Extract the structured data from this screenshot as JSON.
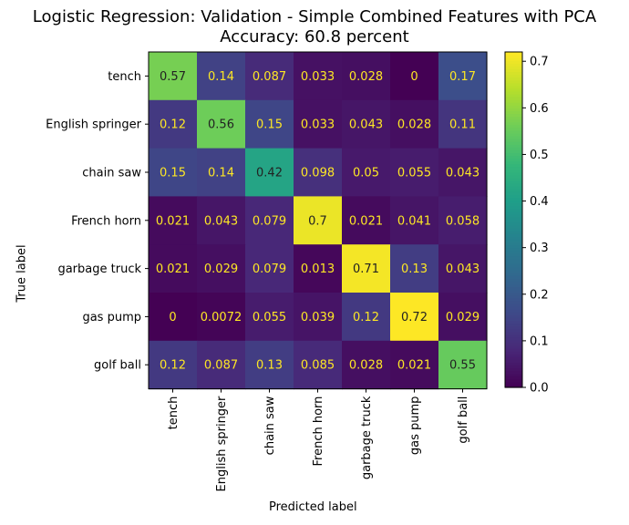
{
  "chart_data": {
    "type": "heatmap",
    "title": "Logistic Regression: Validation - Simple Combined Features with PCA",
    "subtitle": "Accuracy: 60.8 percent",
    "xlabel": "Predicted label",
    "ylabel": "True label",
    "categories": [
      "tench",
      "English springer",
      "chain saw",
      "French horn",
      "garbage truck",
      "gas pump",
      "golf ball"
    ],
    "matrix": [
      [
        0.57,
        0.14,
        0.087,
        0.033,
        0.028,
        0,
        0.17
      ],
      [
        0.12,
        0.56,
        0.15,
        0.033,
        0.043,
        0.028,
        0.11
      ],
      [
        0.15,
        0.14,
        0.42,
        0.098,
        0.05,
        0.055,
        0.043
      ],
      [
        0.021,
        0.043,
        0.079,
        0.7,
        0.021,
        0.041,
        0.058
      ],
      [
        0.021,
        0.029,
        0.079,
        0.013,
        0.71,
        0.13,
        0.043
      ],
      [
        0,
        0.0072,
        0.055,
        0.039,
        0.12,
        0.72,
        0.029
      ],
      [
        0.12,
        0.087,
        0.13,
        0.085,
        0.028,
        0.021,
        0.55
      ]
    ],
    "colormap": "viridis",
    "colorbar": {
      "min": 0.0,
      "max": 0.72,
      "ticks": [
        "0.0",
        "0.1",
        "0.2",
        "0.3",
        "0.4",
        "0.5",
        "0.6",
        "0.7"
      ]
    },
    "text_colors": {
      "light": "#fde725",
      "dark": "#222222"
    },
    "grid": false
  }
}
